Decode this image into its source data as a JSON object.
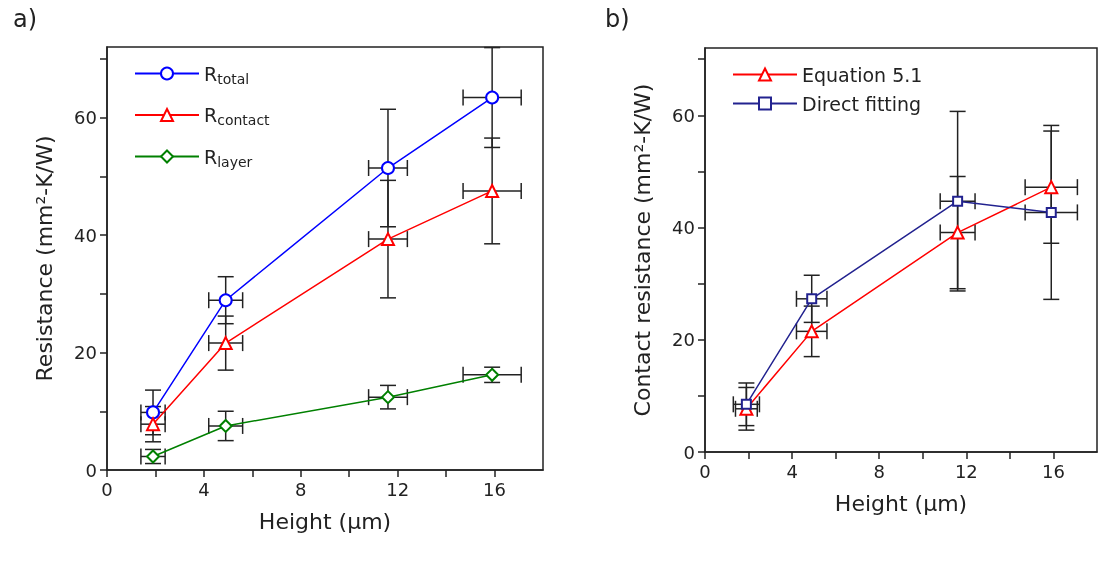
{
  "chart_data": [
    {
      "type": "line",
      "title": "a)",
      "xlabel": "Height (µm)",
      "ylabel": "Resistance (mm²-K/W)",
      "xlim": [
        0,
        18
      ],
      "ylim": [
        0,
        72
      ],
      "xticks": [
        0,
        {
          "value": 2,
          "label": null
        },
        4,
        {
          "value": 6,
          "label": null
        },
        8,
        {
          "value": 10,
          "label": null
        },
        12,
        {
          "value": 14,
          "label": null
        },
        16
      ],
      "yticks": [
        0,
        {
          "value": 10,
          "label": null
        },
        20,
        {
          "value": 30,
          "label": null
        },
        40,
        {
          "value": 50,
          "label": null
        },
        60,
        {
          "value": 70,
          "label": null
        }
      ],
      "legend": "top left",
      "grid": false,
      "series": [
        {
          "name": "R$_{total}$",
          "color": "#0000ff",
          "marker": "circle",
          "x": [
            1.9,
            4.9,
            11.6,
            15.9
          ],
          "values": [
            9.8,
            28.9,
            51.4,
            63.4
          ],
          "errors": [
            3.8,
            4,
            10,
            8.5
          ],
          "xerrors": [
            0.5,
            0.7,
            0.8,
            1.2
          ]
        },
        {
          "name": "R$_{contact}$",
          "color": "#ff0000",
          "marker": "triangle",
          "x": [
            1.9,
            4.9,
            11.6,
            15.9
          ],
          "values": [
            7.8,
            21.6,
            39.3,
            47.5
          ],
          "errors": [
            3,
            4.6,
            10,
            9
          ],
          "xerrors": [
            0.5,
            0.7,
            0.8,
            1.2
          ]
        },
        {
          "name": "R$_{layer}$",
          "color": "#008000",
          "marker": "diamond",
          "x": [
            1.9,
            4.9,
            11.6,
            15.9
          ],
          "values": [
            2.3,
            7.5,
            12.4,
            16.2
          ],
          "errors": [
            1.2,
            2.5,
            2,
            1.3
          ],
          "xerrors": [
            0.5,
            0.7,
            0.8,
            1.2
          ]
        }
      ]
    },
    {
      "type": "line",
      "title": "b)",
      "xlabel": "Height (µm)",
      "ylabel": "Contact resistance (mm²-K/W)",
      "xlim": [
        0,
        18
      ],
      "ylim": [
        0,
        72
      ],
      "xticks": [
        0,
        {
          "value": 2,
          "label": null
        },
        4,
        {
          "value": 6,
          "label": null
        },
        8,
        {
          "value": 10,
          "label": null
        },
        12,
        {
          "value": 14,
          "label": null
        },
        16
      ],
      "yticks": [
        0,
        {
          "value": 10,
          "label": null
        },
        20,
        {
          "value": 30,
          "label": null
        },
        40,
        {
          "value": 50,
          "label": null
        },
        60,
        {
          "value": 70,
          "label": null
        }
      ],
      "legend": "top left",
      "grid": false,
      "series": [
        {
          "name": "Equation 5.1",
          "color": "#ff0000",
          "marker": "triangle",
          "x": [
            1.9,
            4.9,
            11.6,
            15.9
          ],
          "values": [
            7.7,
            21.5,
            39.1,
            47.2
          ],
          "errors": [
            3.8,
            4.5,
            10,
            10
          ],
          "xerrors": [
            0.5,
            0.7,
            0.8,
            1.2
          ]
        },
        {
          "name": "Direct fitting",
          "color": "#22228f",
          "marker": "square",
          "x": [
            1.9,
            4.9,
            11.6,
            15.9
          ],
          "values": [
            8.5,
            27.3,
            44.7,
            42.7
          ],
          "errors": [
            3.8,
            4.2,
            16,
            15.5
          ],
          "xerrors": [
            0.6,
            0.7,
            0.8,
            1.2
          ]
        }
      ]
    }
  ]
}
